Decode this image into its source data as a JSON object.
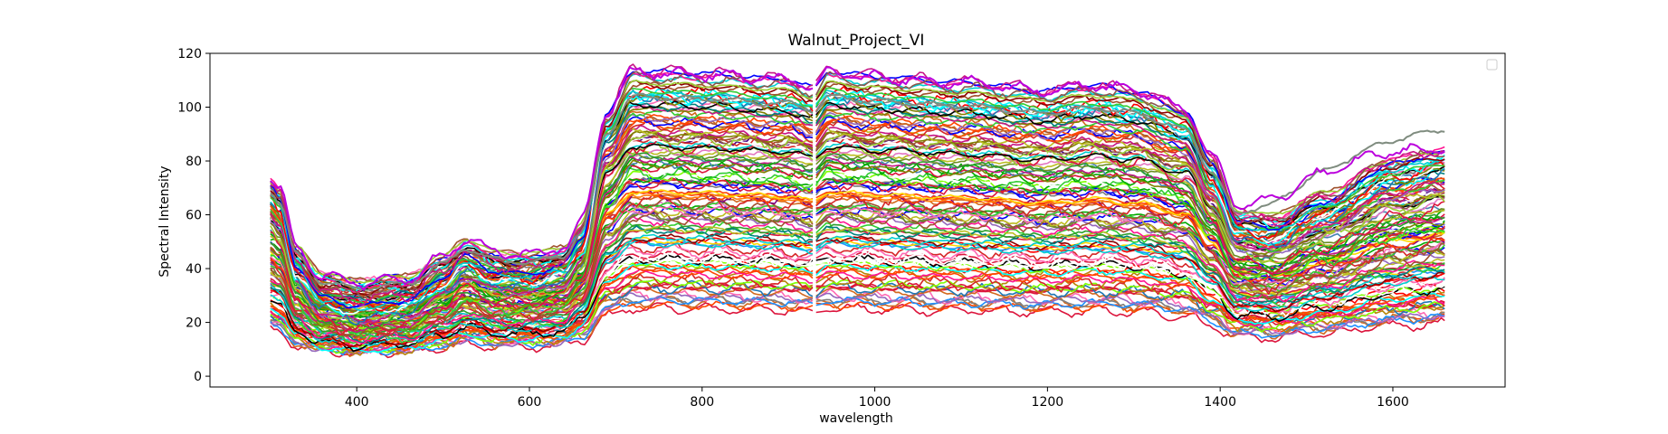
{
  "chart_data": {
    "type": "line",
    "title": "Walnut_Project_VI",
    "xlabel": "wavelength",
    "ylabel": "Spectral Intensity",
    "xlim": [
      230,
      1730
    ],
    "ylim": [
      -4,
      120
    ],
    "xticks": [
      400,
      600,
      800,
      1000,
      1200,
      1400,
      1600
    ],
    "yticks": [
      0,
      20,
      40,
      60,
      80,
      100,
      120
    ],
    "grid": false,
    "legend": {
      "placement": "top-right",
      "entries": []
    },
    "x_range": [
      300,
      1660
    ],
    "segment_gap": [
      932,
      942
    ],
    "series_count": 120,
    "profile_knots": {
      "x": [
        300,
        310,
        330,
        360,
        400,
        460,
        500,
        525,
        560,
        600,
        640,
        660,
        690,
        720,
        800,
        900,
        930,
        945,
        1000,
        1100,
        1200,
        1250,
        1300,
        1360,
        1390,
        1420,
        1460,
        1520,
        1600,
        1660
      ],
      "value": [
        0.6,
        0.56,
        0.33,
        0.22,
        0.19,
        0.21,
        0.29,
        0.36,
        0.31,
        0.3,
        0.33,
        0.42,
        0.85,
        1.0,
        0.99,
        0.97,
        0.94,
        1.0,
        0.98,
        0.96,
        0.93,
        0.95,
        0.93,
        0.86,
        0.68,
        0.48,
        0.46,
        0.55,
        0.68,
        0.72
      ]
    },
    "series_ranges": {
      "plateau_peak": [
        20,
        113
      ],
      "baseline_low": [
        2,
        24
      ]
    },
    "outlier_series": [
      {
        "color": "#7f8c7f",
        "plateau_peak": 104,
        "swir_tail": 93
      },
      {
        "color": "#bb00dd",
        "plateau_peak": 113,
        "swir_tail": 84
      }
    ],
    "palette": [
      "#1f77b4",
      "#ff7f0e",
      "#2ca02c",
      "#d62728",
      "#9467bd",
      "#8c564b",
      "#e377c2",
      "#7f7f7f",
      "#bcbd22",
      "#17becf",
      "#000000",
      "#ff00ff",
      "#00ffff",
      "#00aa00",
      "#0000ff",
      "#ff0000",
      "#808000",
      "#800080",
      "#008080",
      "#ff69b4",
      "#a0522d",
      "#4b0082",
      "#32cd32",
      "#ffd700",
      "#00ced1",
      "#dc143c",
      "#6b8e23",
      "#ff1493",
      "#1e90ff",
      "#b8860b",
      "#556b2f",
      "#ff4500",
      "#2f4f4f",
      "#9acd32",
      "#c71585",
      "#4682b4",
      "#d2691e",
      "#7fff00",
      "#8b0000",
      "#ffffff"
    ]
  }
}
